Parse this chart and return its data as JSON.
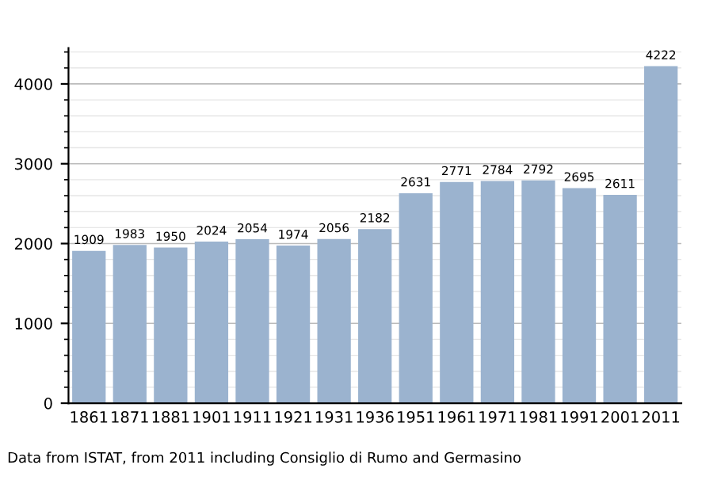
{
  "chart_data": {
    "type": "bar",
    "categories": [
      "1861",
      "1871",
      "1881",
      "1901",
      "1911",
      "1921",
      "1931",
      "1936",
      "1951",
      "1961",
      "1971",
      "1981",
      "1991",
      "2001",
      "2011"
    ],
    "values": [
      1909,
      1983,
      1950,
      2024,
      2054,
      1974,
      2056,
      2182,
      2631,
      2771,
      2784,
      2792,
      2695,
      2611,
      4222
    ],
    "color": "#9bb3cf",
    "ylim": [
      0,
      4450
    ],
    "yticks": [
      0,
      1000,
      2000,
      3000,
      4000
    ],
    "grid": "y",
    "data_labels": true,
    "annotations": [
      "Data from ISTAT, from 2011 including Consiglio di Rumo and Germasino"
    ]
  }
}
